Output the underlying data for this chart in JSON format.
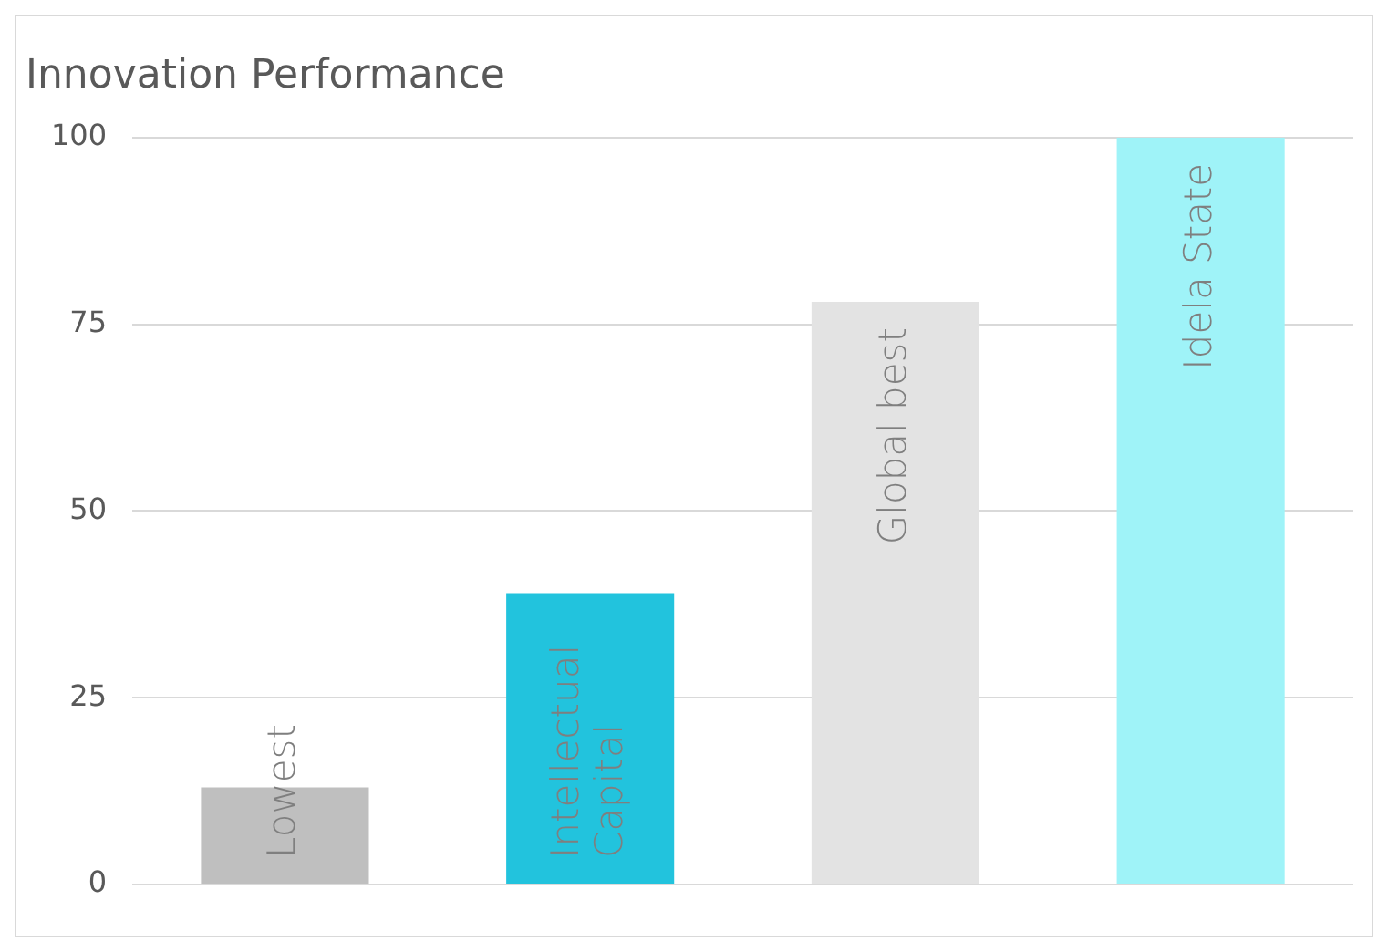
{
  "chart_data": {
    "type": "bar",
    "title": "Innovation Performance",
    "categories": [
      "Lowest",
      "Intellectual Capital",
      "Global best",
      "Idela State"
    ],
    "values": [
      13,
      39,
      78,
      100
    ],
    "colors": [
      "#bfbfbf",
      "#22c3dd",
      "#e3e3e3",
      "#9ff3f8"
    ],
    "ylim": [
      0,
      100
    ],
    "yticks": [
      0,
      25,
      50,
      75,
      100
    ],
    "grid": "y",
    "legend": false
  }
}
